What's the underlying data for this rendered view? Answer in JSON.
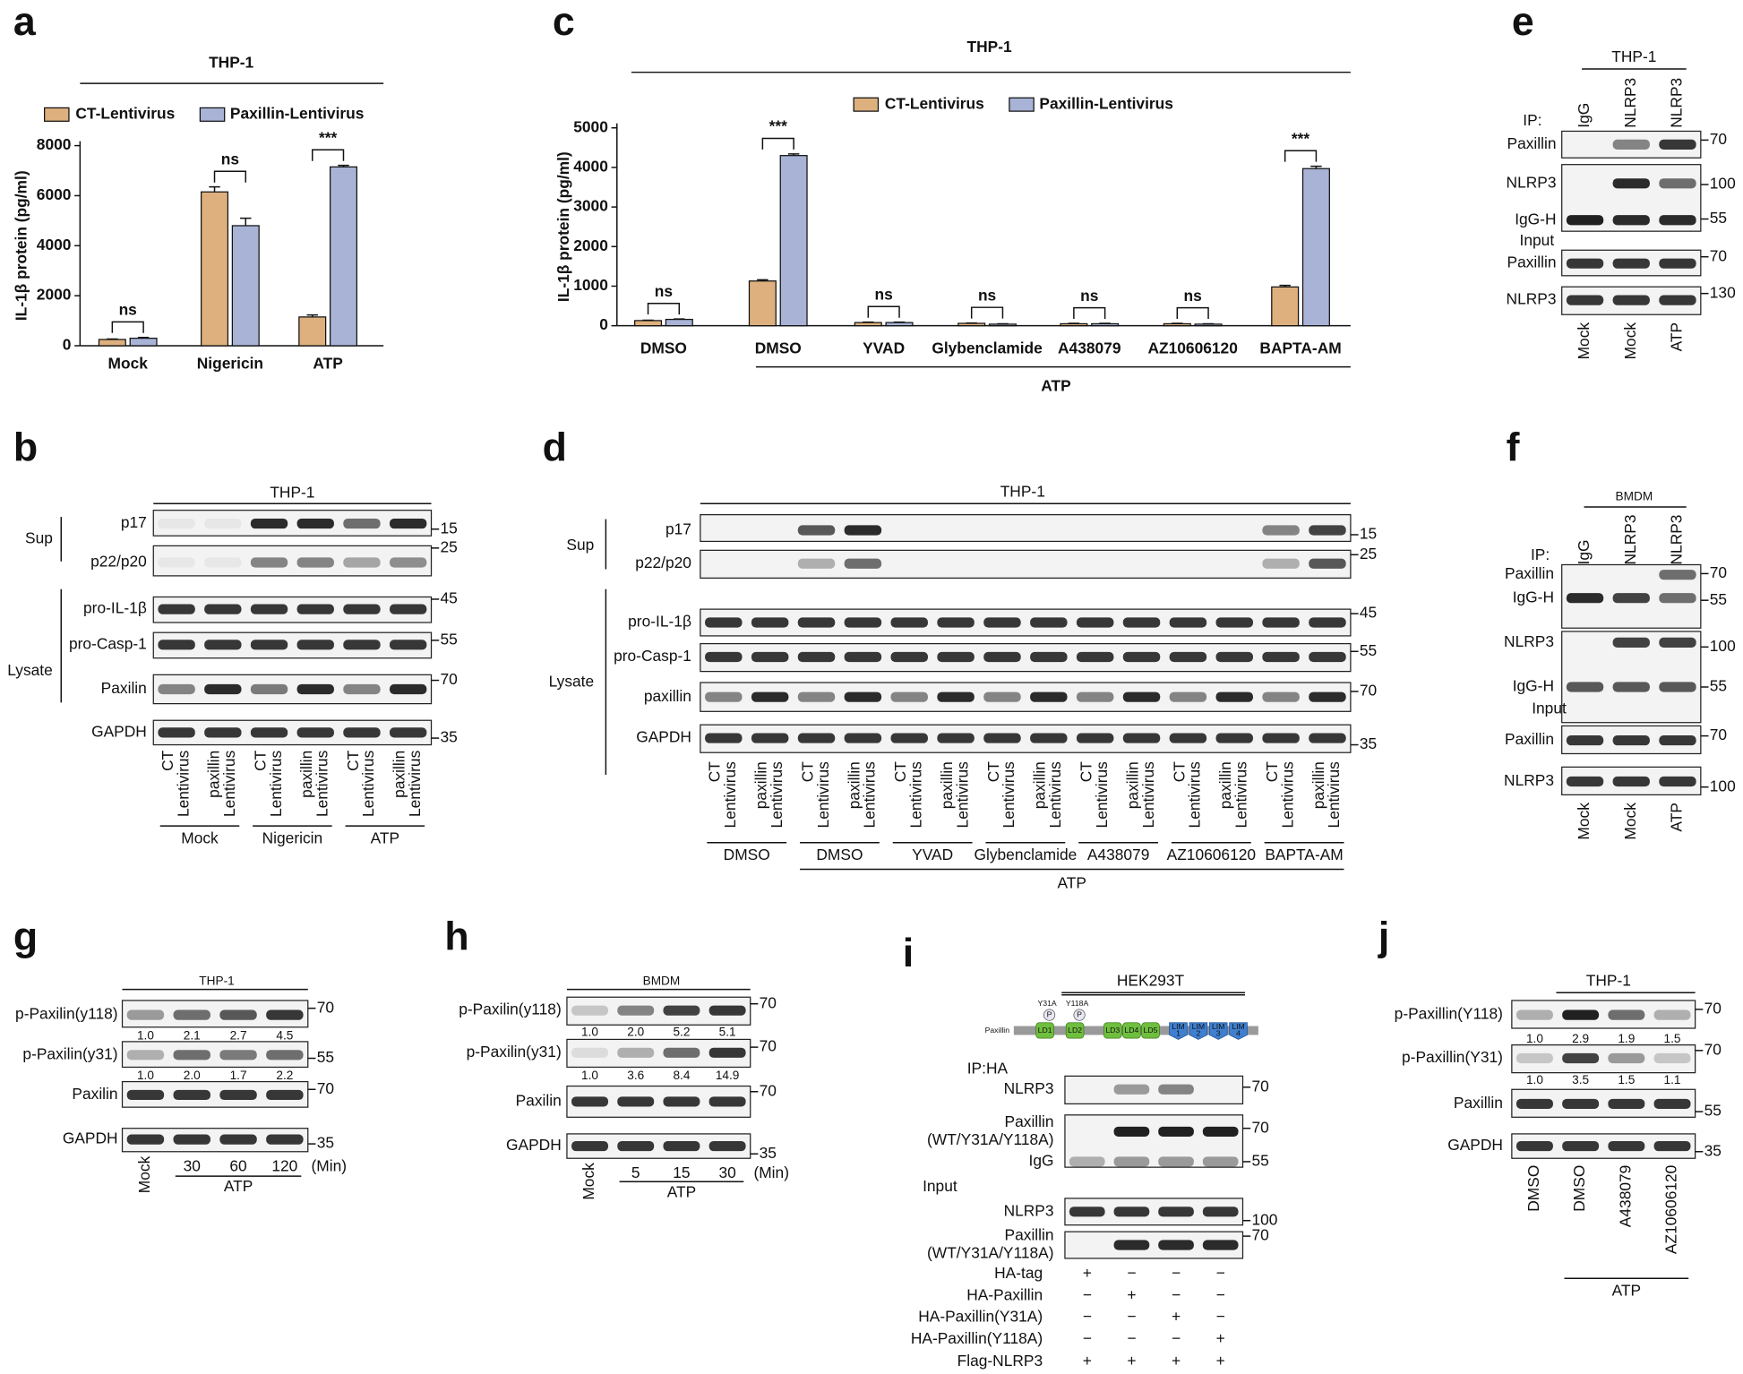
{
  "chart_data": [
    {
      "type": "bar",
      "panel": "a",
      "title": "THP-1",
      "y_label": "IL-1β protein (pg/ml)",
      "categories": [
        "Mock",
        "Nigericin",
        "ATP"
      ],
      "series": [
        {
          "name": "CT-Lentivirus",
          "color": "#ddb07e",
          "values": [
            250,
            6150,
            1150
          ],
          "errors": [
            20,
            200,
            80
          ]
        },
        {
          "name": "Paxillin-Lentivirus",
          "color": "#a8b3d6",
          "values": [
            300,
            4800,
            7150
          ],
          "errors": [
            30,
            300,
            60
          ]
        }
      ],
      "ylim": [
        0,
        8000
      ],
      "yticks": [
        0,
        2000,
        4000,
        6000,
        8000
      ],
      "significance": [
        "ns",
        "ns",
        "***"
      ]
    },
    {
      "type": "bar",
      "panel": "c",
      "title": "THP-1",
      "y_label": "IL-1β protein (pg/ml)",
      "categories": [
        "DMSO",
        "DMSO",
        "YVAD",
        "Glybenclamide",
        "A438079",
        "AZ10606120",
        "BAPTA-AM"
      ],
      "group_label": "ATP",
      "series": [
        {
          "name": "CT-Lentivirus",
          "color": "#ddb07e",
          "values": [
            130,
            1130,
            80,
            60,
            50,
            50,
            980
          ],
          "errors": [
            10,
            30,
            10,
            10,
            10,
            10,
            40
          ]
        },
        {
          "name": "Paxillin-Lentivirus",
          "color": "#a8b3d6",
          "values": [
            160,
            4300,
            80,
            40,
            50,
            40,
            3970
          ],
          "errors": [
            10,
            40,
            10,
            10,
            10,
            10,
            60
          ]
        }
      ],
      "ylim": [
        0,
        5000
      ],
      "yticks": [
        0,
        1000,
        2000,
        3000,
        4000,
        5000
      ],
      "significance": [
        "ns",
        "***",
        "ns",
        "ns",
        "ns",
        "ns",
        "***"
      ]
    }
  ],
  "blots": {
    "b": {
      "panel": "b",
      "title": "THP-1",
      "sides": [
        {
          "label": "Sup"
        },
        {
          "label": "Lysate"
        }
      ],
      "rows": [
        {
          "label": "p17",
          "markers": [
            15
          ]
        },
        {
          "label": "p22/p20",
          "markers": [
            25
          ]
        },
        {
          "label": "pro-IL-1β",
          "markers": [
            45
          ]
        },
        {
          "label": "pro-Casp-1",
          "markers": [
            55
          ]
        },
        {
          "label": "Paxilin",
          "markers": [
            70
          ]
        },
        {
          "label": "GAPDH",
          "markers": [
            35
          ]
        }
      ],
      "lanes": [
        {
          "label": "Mock",
          "lanes": [
            [
              "CT",
              "Lentivirus"
            ],
            [
              "paxillin",
              "Lentivirus"
            ]
          ]
        },
        {
          "label": "Nigericin",
          "lanes": [
            [
              "CT",
              "Lentivirus"
            ],
            [
              "paxillin",
              "Lentivirus"
            ]
          ]
        },
        {
          "label": "ATP",
          "lanes": [
            [
              "CT",
              "Lentivirus"
            ],
            [
              "paxillin",
              "Lentivirus"
            ]
          ]
        }
      ]
    },
    "d": {
      "panel": "d",
      "title": "THP-1",
      "sides": [
        {
          "label": "Sup"
        },
        {
          "label": "Lysate"
        }
      ],
      "rows": [
        {
          "label": "p17",
          "markers": [
            15
          ]
        },
        {
          "label": "p22/p20",
          "markers": [
            25
          ]
        },
        {
          "label": "pro-IL-1β",
          "markers": [
            45
          ]
        },
        {
          "label": "pro-Casp-1",
          "markers": [
            55
          ]
        },
        {
          "label": "paxillin",
          "markers": [
            70
          ]
        },
        {
          "label": "GAPDH",
          "markers": [
            35
          ]
        }
      ],
      "lanes": [
        {
          "label": "DMSO",
          "lanes": [
            [
              "CT",
              "Lentivirus"
            ],
            [
              "paxillin",
              "Lentivirus"
            ]
          ]
        },
        {
          "label": "ATP",
          "lanes": [
            {
              "label": "DMSO",
              "lanes": [
                [
                  "CT",
                  "Lentivirus"
                ],
                [
                  "paxillin",
                  "Lentivirus"
                ]
              ]
            },
            {
              "label": "YVAD",
              "lanes": [
                [
                  "CT",
                  "Lentivirus"
                ],
                [
                  "paxillin",
                  "Lentivirus"
                ]
              ]
            },
            {
              "label": "Glybenclamide",
              "lanes": [
                [
                  "CT",
                  "Lentivirus"
                ],
                [
                  "paxillin",
                  "Lentivirus"
                ]
              ]
            },
            {
              "label": "A438079",
              "lanes": [
                [
                  "CT",
                  "Lentivirus"
                ],
                [
                  "paxillin",
                  "Lentivirus"
                ]
              ]
            },
            {
              "label": "AZ10606120",
              "lanes": [
                [
                  "CT",
                  "Lentivirus"
                ],
                [
                  "paxillin",
                  "Lentivirus"
                ]
              ]
            },
            {
              "label": "BAPTA-AM",
              "lanes": [
                [
                  "CT",
                  "Lentivirus"
                ],
                [
                  "paxillin",
                  "Lentivirus"
                ]
              ]
            }
          ]
        }
      ]
    },
    "e": {
      "panel": "e",
      "title": "THP-1",
      "labels": [
        "IP:",
        "Input"
      ],
      "columns": [
        "IgG",
        "NLRP3",
        "NLRP3"
      ],
      "rows": [
        {
          "label": "Paxillin",
          "markers": [
            70
          ]
        },
        {
          "label": "NLRP3",
          "markers": [
            100
          ]
        },
        {
          "label": "IgG-H",
          "markers": [
            55
          ]
        },
        {
          "label": "Paxillin",
          "markers": [
            70
          ]
        },
        {
          "label": "NLRP3",
          "markers": [
            130
          ]
        }
      ],
      "lanes": [
        "Mock",
        "Mock",
        "ATP"
      ]
    },
    "f": {
      "panel": "f",
      "title": "BMDM",
      "labels": [
        "IP:",
        "Input"
      ],
      "columns": [
        "IgG",
        "NLRP3",
        "NLRP3"
      ],
      "rows": [
        {
          "label": "Paxillin",
          "markers": [
            70
          ]
        },
        {
          "label": "IgG-H",
          "markers": [
            55
          ]
        },
        {
          "label": "NLRP3",
          "markers": [
            100
          ]
        },
        {
          "label": "IgG-H",
          "markers": [
            55
          ]
        },
        {
          "label": "Paxillin",
          "markers": [
            70
          ]
        },
        {
          "label": "NLRP3",
          "markers": [
            100
          ]
        }
      ],
      "lanes": [
        "Mock",
        "Mock",
        "ATP"
      ]
    },
    "g": {
      "panel": "g",
      "title": "THP-1",
      "unit": "(Min)",
      "rows": [
        {
          "label": "p-Paxilin(y118)",
          "markers": [
            70
          ],
          "quant": [
            "1.0",
            "2.1",
            "2.7",
            "4.5"
          ]
        },
        {
          "label": "p-Paxilin(y31)",
          "markers": [
            55
          ],
          "quant": [
            "1.0",
            "2.0",
            "1.7",
            "2.2"
          ]
        },
        {
          "label": "Paxilin",
          "markers": [
            70
          ]
        },
        {
          "label": "GAPDH",
          "markers": [
            35
          ]
        }
      ],
      "lanes": [
        "Mock",
        {
          "label": "ATP",
          "lanes": [
            30,
            60,
            120
          ]
        }
      ]
    },
    "h": {
      "panel": "h",
      "title": "BMDM",
      "unit": "(Min)",
      "rows": [
        {
          "label": "p-Paxilin(y118)",
          "markers": [
            70
          ],
          "quant": [
            "1.0",
            "2.0",
            "5.2",
            "5.1"
          ]
        },
        {
          "label": "p-Paxilin(y31)",
          "markers": [
            70
          ],
          "quant": [
            "1.0",
            "3.6",
            "8.4",
            "14.9"
          ]
        },
        {
          "label": "Paxilin",
          "markers": [
            70
          ]
        },
        {
          "label": "GAPDH",
          "markers": [
            35
          ]
        }
      ],
      "lanes": [
        "Mock",
        {
          "label": "ATP",
          "lanes": [
            5,
            15,
            30
          ]
        }
      ]
    },
    "i": {
      "panel": "i",
      "title": "HEK293T",
      "labels": [
        "IP:HA",
        "Input"
      ],
      "diagram": {
        "label": "Paxillin",
        "mutations": [
          "Y31A",
          "Y118A"
        ],
        "phospho": "P",
        "domains": [
          "LD1",
          "LD2",
          "LD3",
          "LD4",
          "LD5"
        ],
        "lim": {
          "label": "LIM",
          "numbers": [
            1,
            2,
            3,
            4
          ]
        }
      },
      "rows": [
        {
          "label": "NLRP3",
          "markers": [
            70
          ]
        },
        {
          "label": [
            "Paxillin",
            "(WT/Y31A/Y118A)"
          ],
          "markers": [
            70
          ]
        },
        {
          "label": "IgG",
          "markers": [
            55
          ]
        },
        {
          "label": "NLRP3",
          "markers": [
            100
          ]
        },
        {
          "label": [
            "Paxillin",
            "(WT/Y31A/Y118A)"
          ],
          "markers": [
            70
          ]
        }
      ],
      "conditions": [
        {
          "label": "HA-tag",
          "signs": [
            "+",
            "−",
            "−",
            "−"
          ]
        },
        {
          "label": "HA-Paxillin",
          "signs": [
            "−",
            "+",
            "−",
            "−"
          ]
        },
        {
          "label": "HA-Paxillin(Y31A)",
          "signs": [
            "−",
            "−",
            "+",
            "−"
          ]
        },
        {
          "label": "HA-Paxillin(Y118A)",
          "signs": [
            "−",
            "−",
            "−",
            "+"
          ]
        },
        {
          "label": "Flag-NLRP3",
          "signs": [
            "+",
            "+",
            "+",
            "+"
          ]
        }
      ]
    },
    "j": {
      "panel": "j",
      "title": "THP-1",
      "rows": [
        {
          "label": "p-Paxillin(Y118)",
          "markers": [
            70
          ],
          "quant": [
            "1.0",
            "2.9",
            "1.9",
            "1.5"
          ]
        },
        {
          "label": "p-Paxillin(Y31)",
          "markers": [
            70
          ],
          "quant": [
            "1.0",
            "3.5",
            "1.5",
            "1.1"
          ]
        },
        {
          "label": "Paxillin",
          "markers": [
            55
          ]
        },
        {
          "label": "GAPDH",
          "markers": [
            35
          ]
        }
      ],
      "lanes": [
        "DMSO",
        {
          "label": "ATP",
          "lanes": [
            "DMSO",
            "A438079",
            "AZ10606120"
          ]
        }
      ]
    }
  }
}
